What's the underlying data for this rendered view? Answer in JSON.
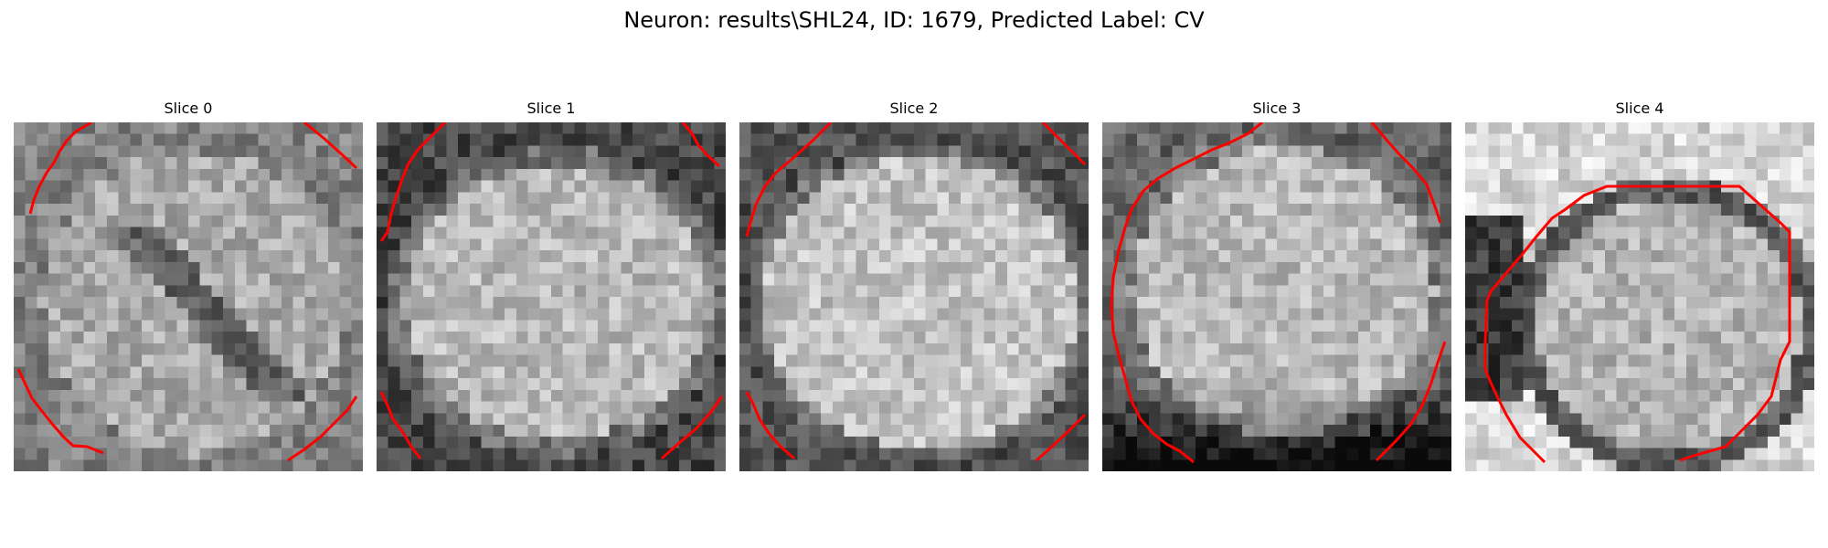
{
  "figure": {
    "title": "Neuron: results\\SHL24, ID: 1679, Predicted Label: CV"
  },
  "panels": [
    {
      "title": "Slice 0"
    },
    {
      "title": "Slice 1"
    },
    {
      "title": "Slice 2"
    },
    {
      "title": "Slice 3"
    },
    {
      "title": "Slice 4"
    }
  ],
  "style": {
    "contour_color": "#ff0000",
    "colormap": "grayscale"
  }
}
